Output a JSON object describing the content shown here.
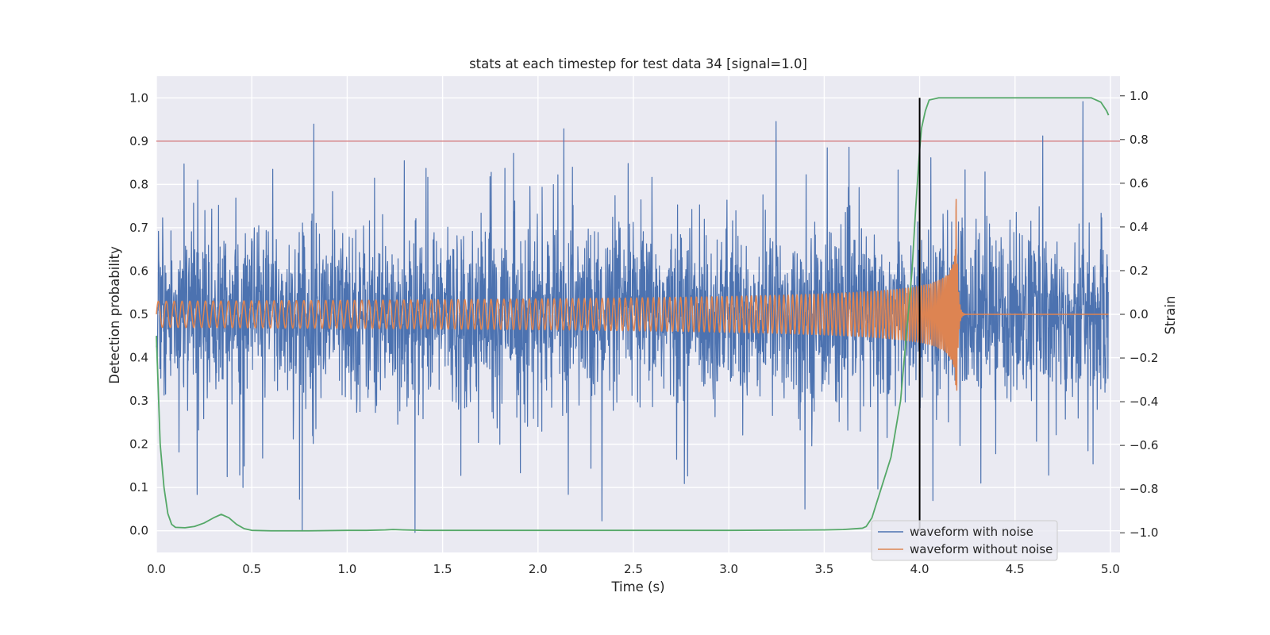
{
  "chart_data": {
    "type": "line",
    "title": "stats at each timestep for test data 34 [signal=1.0]",
    "xlabel": "Time (s)",
    "ylabel_left": "Detection probability",
    "ylabel_right": "Strain",
    "xlim": [
      0.0,
      5.05
    ],
    "ylim_left": [
      -0.05,
      1.05
    ],
    "ylim_right": [
      -1.09,
      1.09
    ],
    "x_ticks": [
      "0.0",
      "0.5",
      "1.0",
      "1.5",
      "2.0",
      "2.5",
      "3.0",
      "3.5",
      "4.0",
      "4.5",
      "5.0"
    ],
    "y_left_ticks": [
      "0.0",
      "0.1",
      "0.2",
      "0.3",
      "0.4",
      "0.5",
      "0.6",
      "0.7",
      "0.8",
      "0.9",
      "1.0"
    ],
    "y_right_ticks": [
      "−1.0",
      "−0.8",
      "−0.6",
      "−0.4",
      "−0.2",
      "0.0",
      "0.2",
      "0.4",
      "0.6",
      "0.8",
      "1.0"
    ],
    "grid": true,
    "legend_position": "lower-right",
    "threshold": {
      "value": 0.9,
      "axis": "left",
      "color": "#c44e52"
    },
    "marker_line": {
      "x": 4.0,
      "y_range": [
        0.0,
        1.0
      ],
      "axis": "left",
      "color": "#000000"
    },
    "series": [
      {
        "name": "waveform with noise",
        "axis": "right",
        "color": "#4c72b0",
        "style": "noise",
        "noise_amplitude_typical": 0.35,
        "noise_extreme": 1.0,
        "x_range": [
          0.0,
          4.99
        ]
      },
      {
        "name": "waveform without noise",
        "axis": "right",
        "color": "#dd8452",
        "style": "chirp",
        "x_range": [
          0.0,
          4.99
        ],
        "amplitude_start": 0.06,
        "amplitude_peak": 0.64,
        "peak_x": 4.19,
        "merger_end_x": 4.22
      },
      {
        "axis": "left",
        "color": "#55a868",
        "x": [
          0.0,
          0.02,
          0.04,
          0.06,
          0.08,
          0.1,
          0.15,
          0.2,
          0.25,
          0.3,
          0.34,
          0.38,
          0.42,
          0.46,
          0.5,
          0.6,
          0.8,
          1.0,
          1.1,
          1.2,
          1.24,
          1.3,
          1.4,
          1.6,
          2.0,
          2.5,
          3.0,
          3.5,
          3.6,
          3.7,
          3.72,
          3.75,
          3.8,
          3.85,
          3.9,
          3.93,
          3.96,
          3.98,
          4.0,
          4.01,
          4.03,
          4.05,
          4.1,
          4.2,
          4.5,
          4.9,
          4.95,
          4.98,
          4.99
        ],
        "y": [
          0.45,
          0.2,
          0.1,
          0.04,
          0.015,
          0.008,
          0.007,
          0.01,
          0.018,
          0.03,
          0.038,
          0.03,
          0.015,
          0.005,
          0.001,
          0.0,
          0.0,
          0.001,
          0.001,
          0.002,
          0.003,
          0.002,
          0.001,
          0.001,
          0.001,
          0.001,
          0.001,
          0.002,
          0.003,
          0.006,
          0.01,
          0.03,
          0.1,
          0.17,
          0.3,
          0.45,
          0.6,
          0.75,
          0.88,
          0.93,
          0.97,
          0.995,
          1.0,
          1.0,
          1.0,
          1.0,
          0.99,
          0.97,
          0.96
        ]
      }
    ]
  }
}
